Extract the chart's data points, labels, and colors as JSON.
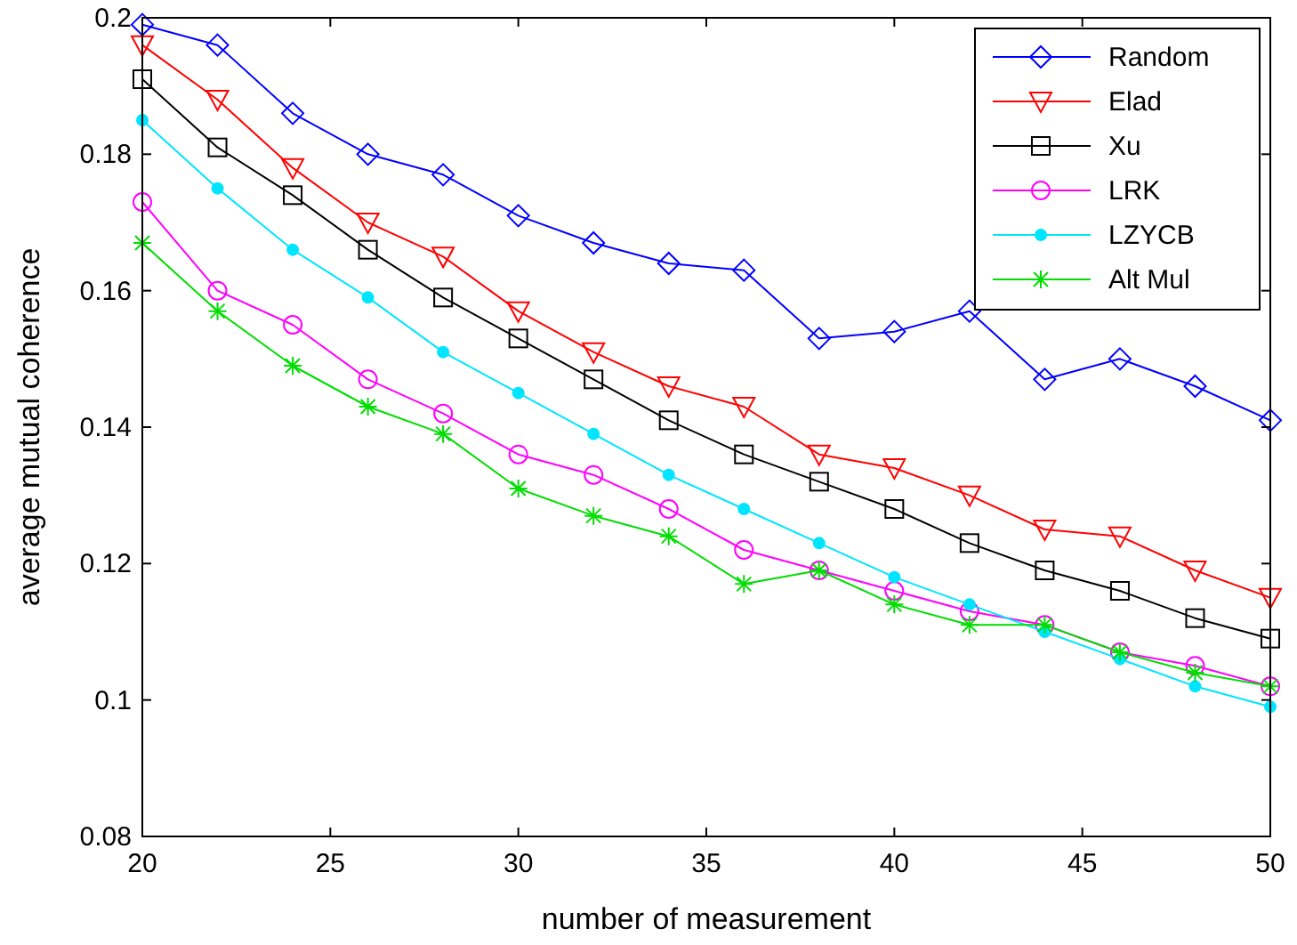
{
  "chart_data": {
    "type": "line",
    "xlabel": "number of measurement",
    "ylabel": "average mutual coherence",
    "x": [
      20,
      22,
      24,
      26,
      28,
      30,
      32,
      34,
      36,
      38,
      40,
      42,
      44,
      46,
      48,
      50
    ],
    "xlim": [
      20,
      50
    ],
    "xticks": [
      20,
      25,
      30,
      35,
      40,
      45,
      50
    ],
    "ylim": [
      0.08,
      0.2
    ],
    "yticks": [
      0.08,
      0.1,
      0.12,
      0.14,
      0.16,
      0.18,
      0.2
    ],
    "grid": false,
    "legend": "top right",
    "line_style": "solid",
    "series": [
      {
        "name": "Random",
        "color": "#0000ff",
        "marker": "diamond",
        "values": [
          0.199,
          0.196,
          0.186,
          0.18,
          0.177,
          0.171,
          0.167,
          0.164,
          0.163,
          0.153,
          0.154,
          0.157,
          0.147,
          0.15,
          0.146,
          0.141
        ]
      },
      {
        "name": "Elad",
        "color": "#ff0000",
        "marker": "triangle",
        "values": [
          0.196,
          0.188,
          0.178,
          0.17,
          0.165,
          0.157,
          0.151,
          0.146,
          0.143,
          0.136,
          0.134,
          0.13,
          0.125,
          0.124,
          0.119,
          0.115
        ]
      },
      {
        "name": "Xu",
        "color": "#000000",
        "marker": "square",
        "values": [
          0.191,
          0.181,
          0.174,
          0.166,
          0.159,
          0.153,
          0.147,
          0.141,
          0.136,
          0.132,
          0.128,
          0.123,
          0.119,
          0.116,
          0.112,
          0.109
        ]
      },
      {
        "name": "LRK",
        "color": "#ff00ff",
        "marker": "circle",
        "values": [
          0.173,
          0.16,
          0.155,
          0.147,
          0.142,
          0.136,
          0.133,
          0.128,
          0.122,
          0.119,
          0.116,
          0.113,
          0.111,
          0.107,
          0.105,
          0.102
        ]
      },
      {
        "name": "LZYCB",
        "color": "#00e5ff",
        "marker": "dot",
        "values": [
          0.185,
          0.175,
          0.166,
          0.159,
          0.151,
          0.145,
          0.139,
          0.133,
          0.128,
          0.123,
          0.118,
          0.114,
          0.11,
          0.106,
          0.102,
          0.099
        ]
      },
      {
        "name": "Alt Mul",
        "color": "#00dd00",
        "marker": "cross",
        "values": [
          0.167,
          0.157,
          0.149,
          0.143,
          0.139,
          0.131,
          0.127,
          0.124,
          0.117,
          0.119,
          0.114,
          0.111,
          0.111,
          0.107,
          0.104,
          0.102
        ]
      }
    ]
  }
}
